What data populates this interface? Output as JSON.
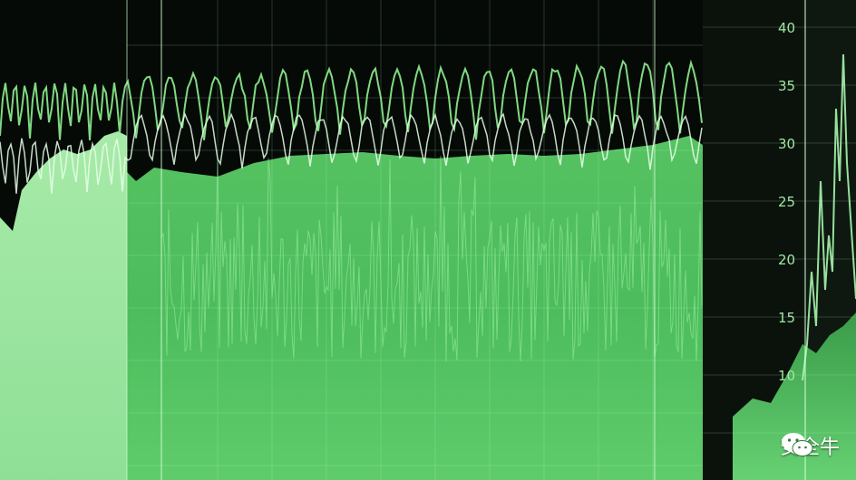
{
  "image": {
    "description_tags": [
      "green-monitor-waveforms"
    ],
    "colors": {
      "background": "#050a06",
      "panel_dark": "#0b120c",
      "green_bright": "#8ff08f",
      "green_mid": "#3fbf55",
      "green_fill": "#58c86a",
      "green_pale": "#a6e6a9",
      "line_white": "#e9ffe9"
    }
  },
  "right_axis": {
    "ticks": [
      "40",
      "35",
      "30",
      "25",
      "20",
      "15",
      "10"
    ]
  },
  "watermark": {
    "icon": "wechat-icon",
    "text": "安全牛"
  }
}
